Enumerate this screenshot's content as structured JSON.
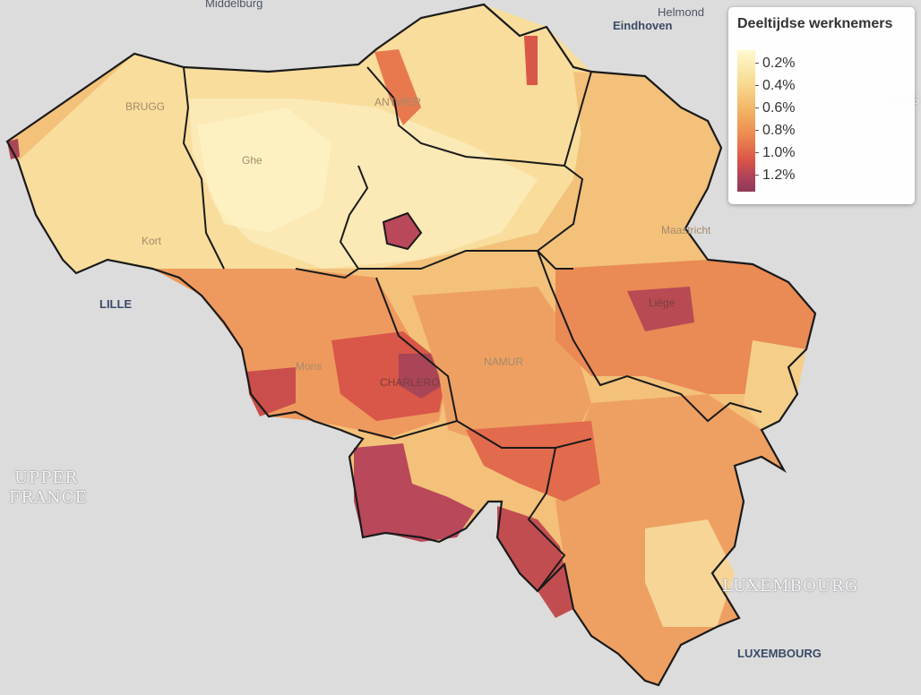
{
  "legend": {
    "title": "Deeltijdse werknemers",
    "labels": [
      "0.2%",
      "0.4%",
      "0.6%",
      "0.8%",
      "1.0%",
      "1.2%"
    ]
  },
  "places": {
    "middelburg": "Middelburg",
    "helmond": "Helmond",
    "eindhoven": "Eindhoven",
    "dusseldorf": "DÜSS",
    "lille": "LILLE",
    "upper_france_1": "UPPER",
    "upper_france_2": "FRANCE",
    "luxembourg_region": "LUXEMBOURG",
    "luxembourg_city": "LUXEMBOURG",
    "brugge": "BRUGG",
    "antwerp": "ANTWER",
    "ghent": "Ghe",
    "kortrijk": "Kort",
    "maastricht": "Maastricht",
    "liege": "Liège",
    "mons": "Mons",
    "charleroi": "CHARLERO",
    "namur": "NAMUR"
  },
  "colors": {
    "c1": "#fef3c6",
    "c2": "#f8dd9c",
    "c3": "#f3c17a",
    "c4": "#eea062",
    "c5": "#e8794f",
    "c6": "#d85748",
    "c7": "#a94556",
    "border": "#1a1a1a"
  }
}
